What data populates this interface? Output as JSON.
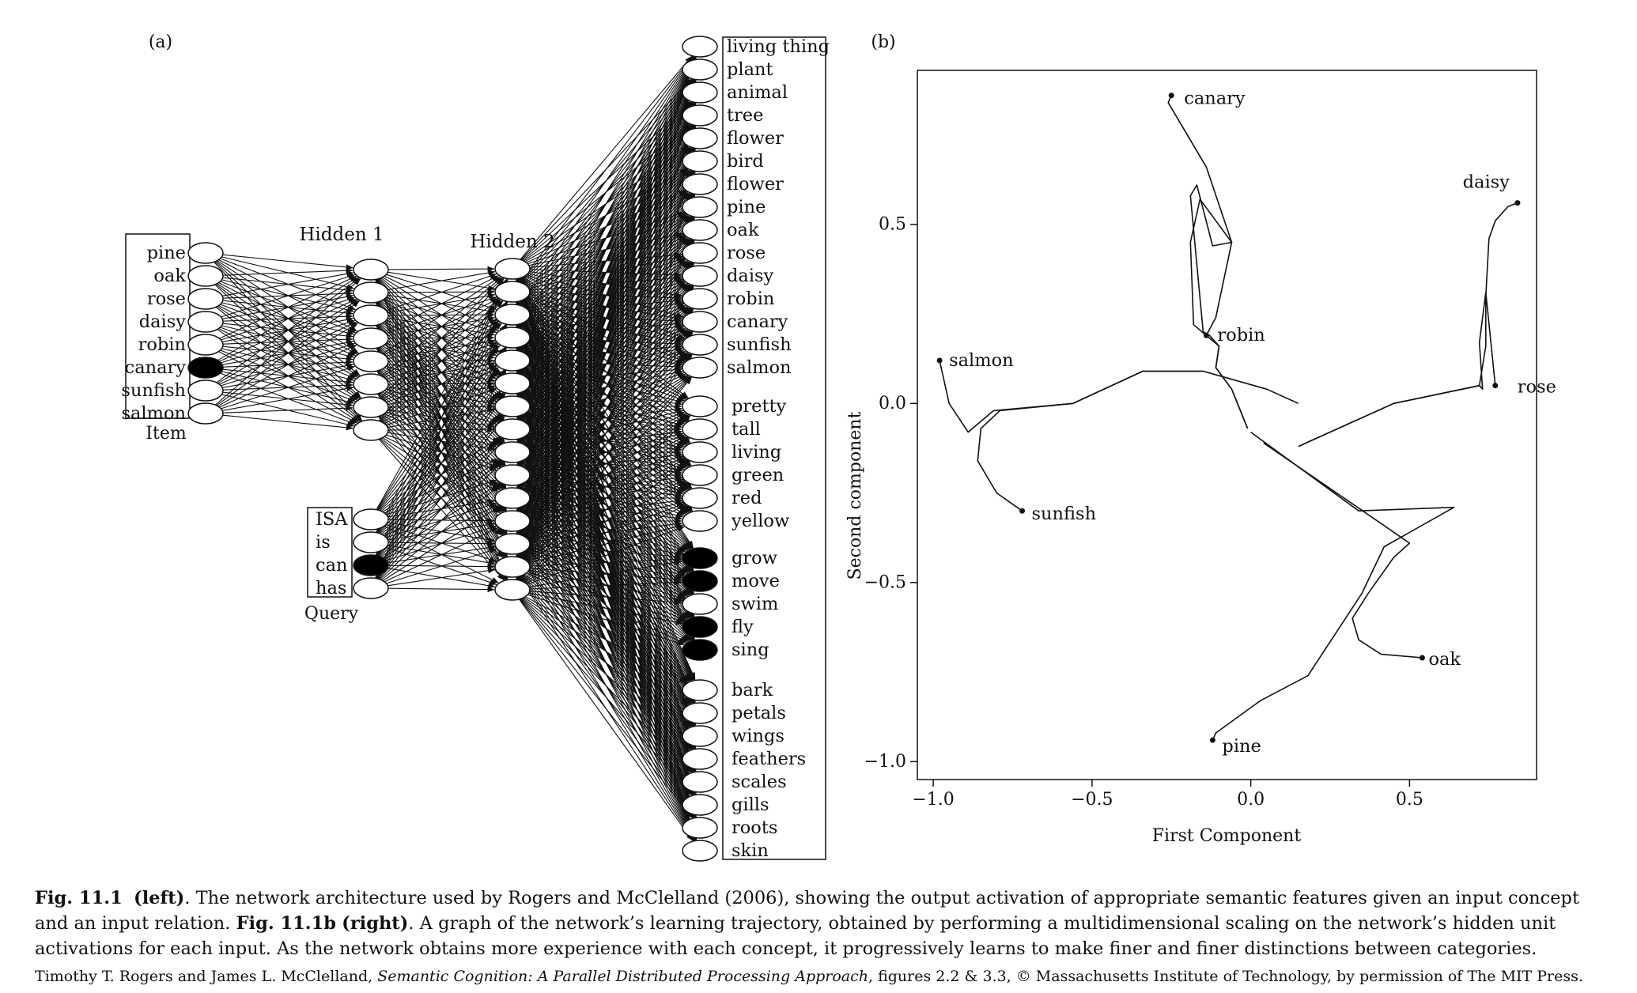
{
  "panel_a": {
    "label": "(a)",
    "item_units": [
      "pine",
      "oak",
      "rose",
      "daisy",
      "robin",
      "canary",
      "sunfish",
      "salmon"
    ],
    "item_active": [
      false,
      false,
      false,
      false,
      false,
      true,
      false,
      false
    ],
    "item_group_label": "Item",
    "hidden1_label": "Hidden 1",
    "hidden1_count": 8,
    "hidden2_label": "Hidden 2",
    "hidden2_count": 15,
    "query_units": [
      "ISA",
      "is",
      "can",
      "has"
    ],
    "query_active": [
      false,
      false,
      true,
      false
    ],
    "query_group_label": "Query",
    "output_groups": [
      {
        "units": [
          "living thing",
          "plant",
          "animal",
          "tree",
          "flower",
          "bird",
          "flower",
          "pine",
          "oak",
          "rose",
          "daisy",
          "robin",
          "canary",
          "sunfish",
          "salmon"
        ],
        "active": [
          false,
          false,
          false,
          false,
          false,
          false,
          false,
          false,
          false,
          false,
          false,
          false,
          false,
          false,
          false
        ]
      },
      {
        "units": [
          "pretty",
          "tall",
          "living",
          "green",
          "red",
          "yellow"
        ],
        "active": [
          false,
          false,
          false,
          false,
          false,
          false
        ]
      },
      {
        "units": [
          "grow",
          "move",
          "swim",
          "fly",
          "sing"
        ],
        "active": [
          true,
          true,
          false,
          true,
          true
        ]
      },
      {
        "units": [
          "bark",
          "petals",
          "wings",
          "feathers",
          "scales",
          "gills",
          "roots",
          "skin"
        ],
        "active": [
          false,
          false,
          false,
          false,
          false,
          false,
          false,
          false
        ]
      }
    ]
  },
  "panel_b": {
    "label": "(b)",
    "chart_data": {
      "type": "line",
      "xlabel": "First Component",
      "ylabel": "Second component",
      "xlim": [
        -1.05,
        0.9
      ],
      "ylim": [
        -1.05,
        0.93
      ],
      "xticks": [
        -1.0,
        -0.5,
        0.0,
        0.5
      ],
      "xtick_labels": [
        "−1.0",
        "−0.5",
        "0.0",
        "0.5"
      ],
      "yticks": [
        -1.0,
        -0.5,
        0.0,
        0.5
      ],
      "ytick_labels": [
        "−1.0",
        "−0.5",
        "0.0",
        "0.5"
      ],
      "series": [
        {
          "name": "canary",
          "points": [
            [
              -0.01,
              -0.07
            ],
            [
              -0.06,
              0.04
            ],
            [
              -0.11,
              0.1
            ],
            [
              -0.1,
              0.16
            ],
            [
              -0.13,
              0.19
            ],
            [
              -0.15,
              0.2
            ],
            [
              -0.19,
              0.58
            ],
            [
              -0.17,
              0.61
            ],
            [
              -0.12,
              0.44
            ],
            [
              -0.06,
              0.45
            ],
            [
              -0.14,
              0.66
            ],
            [
              -0.26,
              0.84
            ],
            [
              -0.25,
              0.86
            ]
          ]
        },
        {
          "name": "robin",
          "points": [
            [
              -0.01,
              -0.07
            ],
            [
              -0.06,
              0.04
            ],
            [
              -0.11,
              0.1
            ],
            [
              -0.1,
              0.16
            ],
            [
              -0.18,
              0.22
            ],
            [
              -0.19,
              0.45
            ],
            [
              -0.16,
              0.57
            ],
            [
              -0.06,
              0.45
            ],
            [
              -0.11,
              0.24
            ],
            [
              -0.14,
              0.19
            ]
          ]
        },
        {
          "name": "salmon",
          "points": [
            [
              0.15,
              0.0
            ],
            [
              0.05,
              0.04
            ],
            [
              -0.15,
              0.09
            ],
            [
              -0.34,
              0.09
            ],
            [
              -0.56,
              0.0
            ],
            [
              -0.81,
              -0.02
            ],
            [
              -0.89,
              -0.08
            ],
            [
              -0.95,
              0.0
            ],
            [
              -0.98,
              0.12
            ]
          ]
        },
        {
          "name": "sunfish",
          "points": [
            [
              -0.15,
              0.09
            ],
            [
              -0.34,
              0.09
            ],
            [
              -0.56,
              0.0
            ],
            [
              -0.79,
              -0.02
            ],
            [
              -0.85,
              -0.07
            ],
            [
              -0.86,
              -0.16
            ],
            [
              -0.8,
              -0.25
            ],
            [
              -0.72,
              -0.3
            ]
          ]
        },
        {
          "name": "daisy",
          "points": [
            [
              0.15,
              -0.12
            ],
            [
              0.45,
              0.0
            ],
            [
              0.72,
              0.05
            ],
            [
              0.74,
              0.16
            ],
            [
              0.74,
              0.3
            ],
            [
              0.75,
              0.46
            ],
            [
              0.77,
              0.51
            ],
            [
              0.81,
              0.55
            ],
            [
              0.84,
              0.56
            ]
          ]
        },
        {
          "name": "rose",
          "points": [
            [
              0.15,
              -0.12
            ],
            [
              0.45,
              0.0
            ],
            [
              0.72,
              0.05
            ],
            [
              0.73,
              0.04
            ],
            [
              0.72,
              0.17
            ],
            [
              0.74,
              0.31
            ],
            [
              0.77,
              0.05
            ]
          ]
        },
        {
          "name": "oak",
          "points": [
            [
              0.04,
              -0.11
            ],
            [
              0.32,
              -0.28
            ],
            [
              0.5,
              -0.39
            ],
            [
              0.45,
              -0.43
            ],
            [
              0.37,
              -0.53
            ],
            [
              0.32,
              -0.6
            ],
            [
              0.34,
              -0.66
            ],
            [
              0.41,
              -0.7
            ],
            [
              0.54,
              -0.71
            ]
          ]
        },
        {
          "name": "pine",
          "points": [
            [
              0.0,
              -0.08
            ],
            [
              0.34,
              -0.3
            ],
            [
              0.64,
              -0.29
            ],
            [
              0.42,
              -0.4
            ],
            [
              0.35,
              -0.53
            ],
            [
              0.18,
              -0.76
            ],
            [
              0.03,
              -0.83
            ],
            [
              -0.11,
              -0.92
            ],
            [
              -0.12,
              -0.94
            ]
          ]
        }
      ]
    }
  },
  "caption": {
    "fig_a_ref": "Fig. 11.1",
    "fig_a_side": "(left)",
    "text_a": ". The network architecture used by Rogers and McClelland (2006), showing the output activation of appropriate semantic features given an input concept and an input relation. ",
    "fig_b_ref": "Fig. 11.1b",
    "fig_b_side": "(right)",
    "text_b": ". A graph of the network’s learning trajectory, obtained by performing a multidimensional scaling on the network’s hidden unit activations for each input. As the network obtains more experience with each concept, it progressively learns to make finer and finer distinctions between categories."
  },
  "credit": {
    "authors": "Timothy T. Rogers and James L. McClelland, ",
    "book_title": "Semantic Cognition: A Parallel Distributed Processing Approach",
    "rest": ", figures 2.2 & 3.3, © Massachusetts Institute of Technology, by permission of The MIT Press."
  }
}
